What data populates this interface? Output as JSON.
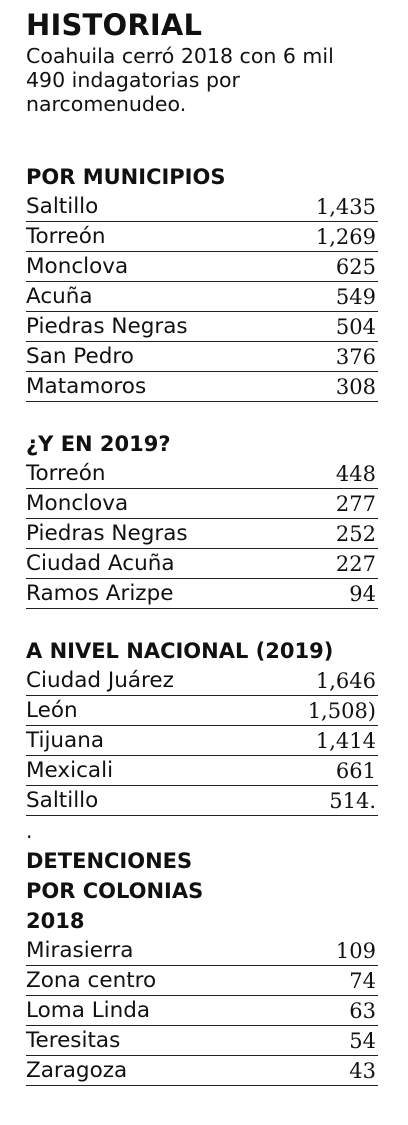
{
  "header": {
    "title": "HISTORIAL",
    "intro": "Coahuila cerró 2018 con 6 mil 490 indagatorias por narcomenudeo."
  },
  "sections": [
    {
      "title": "POR MUNICIPIOS",
      "rows": [
        {
          "name": "Saltillo",
          "value": "1,435"
        },
        {
          "name": "Torreón",
          "value": "1,269"
        },
        {
          "name": "Monclova",
          "value": "625"
        },
        {
          "name": "Acuña",
          "value": "549"
        },
        {
          "name": "Piedras Negras",
          "value": "504"
        },
        {
          "name": "San Pedro",
          "value": "376"
        },
        {
          "name": "Matamoros",
          "value": "308"
        }
      ]
    },
    {
      "title": "¿Y EN 2019?",
      "rows": [
        {
          "name": "Torreón",
          "value": "448"
        },
        {
          "name": "Monclova",
          "value": "277"
        },
        {
          "name": "Piedras Negras",
          "value": "252"
        },
        {
          "name": "Ciudad Acuña",
          "value": "227"
        },
        {
          "name": "Ramos Arizpe",
          "value": "94"
        }
      ]
    },
    {
      "title": "A NIVEL NACIONAL (2019)",
      "rows": [
        {
          "name": "Ciudad Juárez",
          "value": "1,646"
        },
        {
          "name": "León",
          "value": "1,508)"
        },
        {
          "name": "Tijuana",
          "value": "1,414"
        },
        {
          "name": "Mexicali",
          "value": "661"
        },
        {
          "name": "Saltillo",
          "value": "514."
        }
      ]
    },
    {
      "title": "DETENCIONES\nPOR COLONIAS\n2018",
      "rows": [
        {
          "name": "Mirasierra",
          "value": "109"
        },
        {
          "name": "Zona centro",
          "value": "74"
        },
        {
          "name": "Loma Linda",
          "value": "63"
        },
        {
          "name": "Teresitas",
          "value": "54"
        },
        {
          "name": "Zaragoza",
          "value": "43"
        }
      ]
    }
  ],
  "separator_dot": "."
}
